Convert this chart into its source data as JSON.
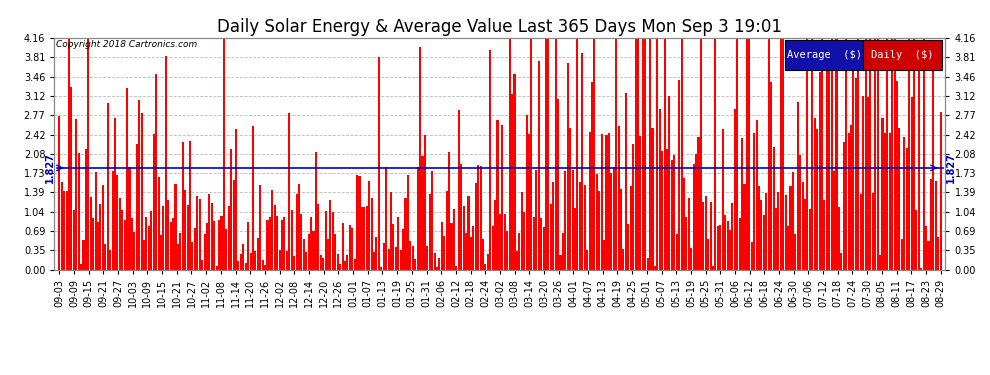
{
  "title": "Daily Solar Energy & Average Value Last 365 Days Mon Sep 3 19:01",
  "copyright": "Copyright 2018 Cartronics.com",
  "average_value": 1.827,
  "average_label": "1.827",
  "ylim": [
    0.0,
    4.16
  ],
  "yticks": [
    0.0,
    0.35,
    0.69,
    1.04,
    1.39,
    1.73,
    2.08,
    2.42,
    2.77,
    3.12,
    3.46,
    3.81,
    4.16
  ],
  "bar_color": "#FF0000",
  "avg_line_color": "#0000BB",
  "background_color": "#FFFFFF",
  "plot_bg_color": "#FFFFFF",
  "grid_color": "#AAAAAA",
  "legend_avg_color": "#1111AA",
  "legend_daily_color": "#CC0000",
  "title_fontsize": 12,
  "tick_fontsize": 7,
  "n_bars": 365,
  "seed": 42,
  "x_tick_labels": [
    "09-03",
    "09-09",
    "09-15",
    "09-21",
    "09-27",
    "10-03",
    "10-09",
    "10-15",
    "10-21",
    "10-27",
    "11-02",
    "11-08",
    "11-14",
    "11-20",
    "11-26",
    "12-02",
    "12-08",
    "12-14",
    "12-20",
    "12-26",
    "01-01",
    "01-07",
    "01-13",
    "01-19",
    "01-25",
    "01-31",
    "02-06",
    "02-12",
    "02-18",
    "02-24",
    "03-02",
    "03-08",
    "03-14",
    "03-20",
    "03-26",
    "04-01",
    "04-07",
    "04-13",
    "04-19",
    "04-25",
    "05-01",
    "05-07",
    "05-13",
    "05-19",
    "05-25",
    "05-31",
    "06-06",
    "06-12",
    "06-18",
    "06-24",
    "06-30",
    "07-06",
    "07-12",
    "07-18",
    "07-24",
    "07-30",
    "08-05",
    "08-11",
    "08-17",
    "08-23",
    "08-29"
  ]
}
